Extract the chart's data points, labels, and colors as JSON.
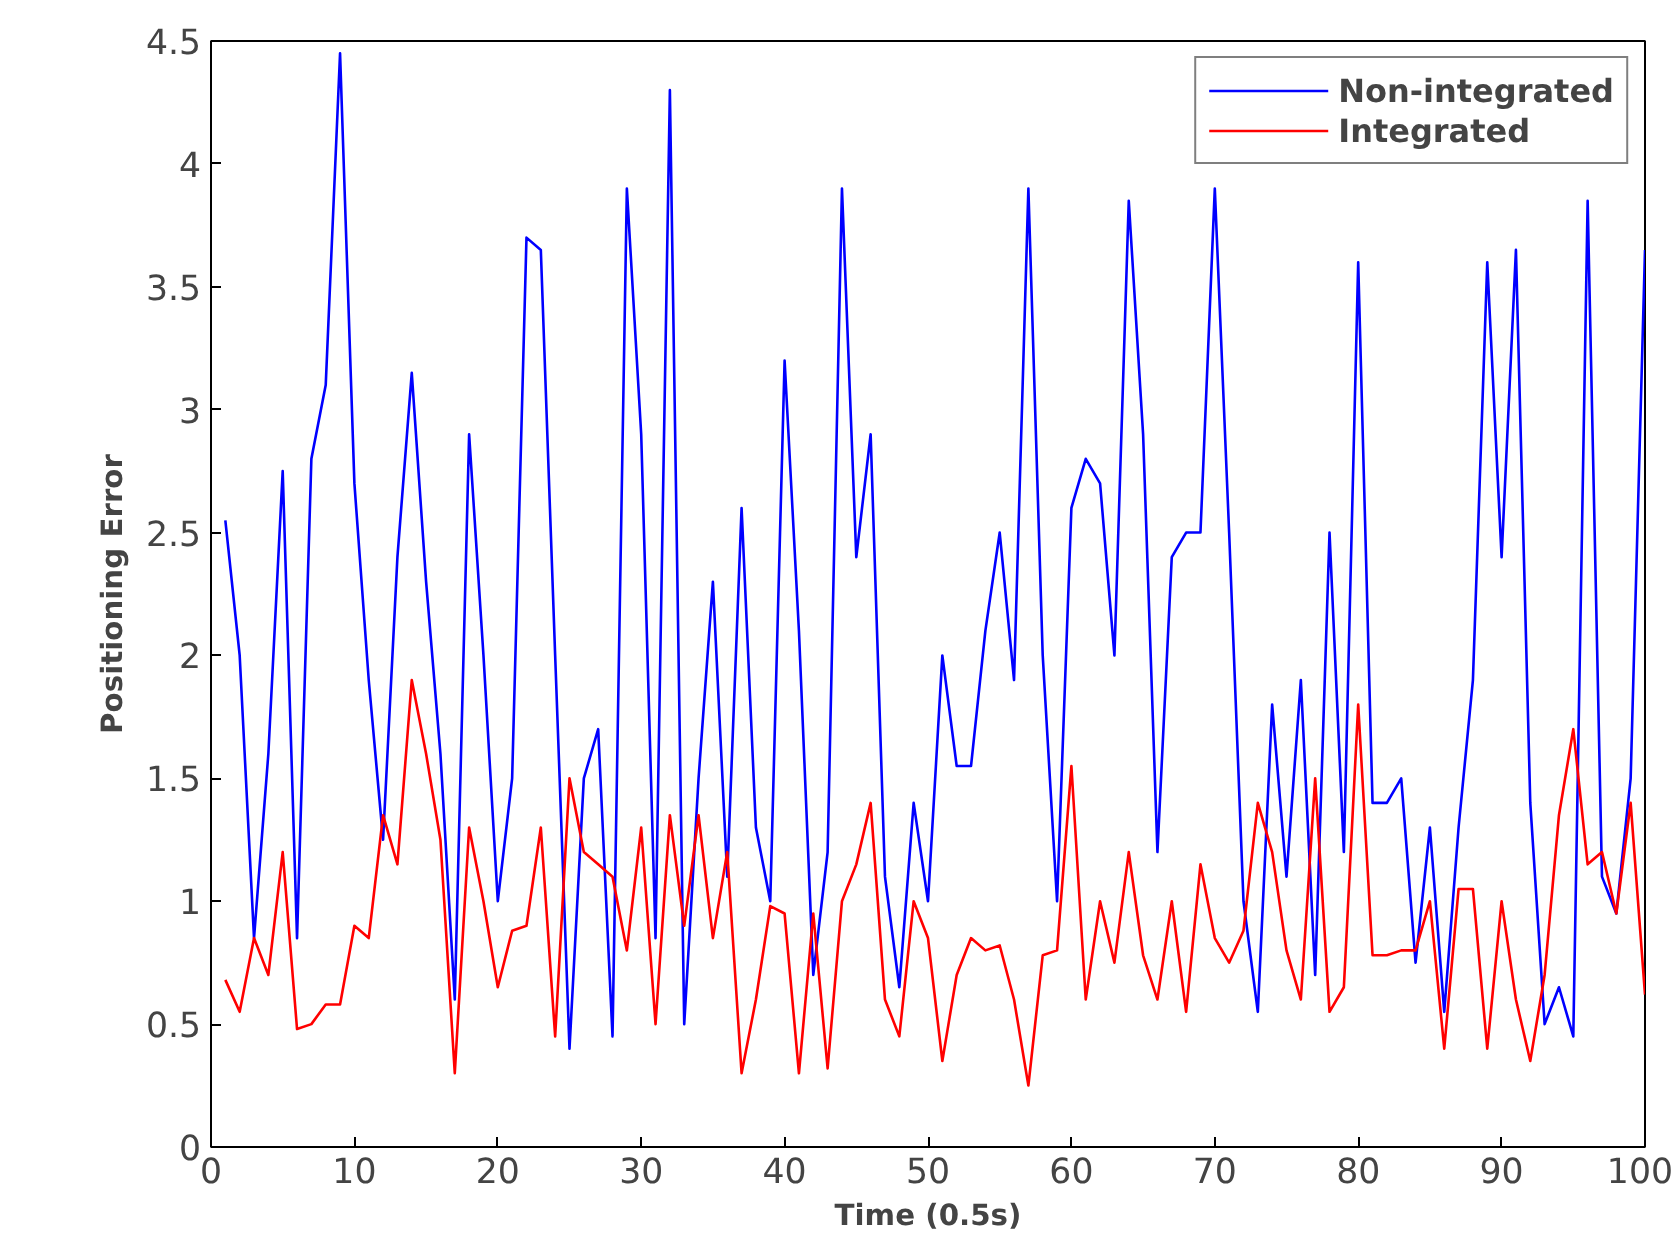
{
  "chart_data": {
    "type": "line",
    "xlabel": "Time (0.5s)",
    "ylabel": "Positioning Error",
    "x": [
      1,
      2,
      3,
      4,
      5,
      6,
      7,
      8,
      9,
      10,
      11,
      12,
      13,
      14,
      15,
      16,
      17,
      18,
      19,
      20,
      21,
      22,
      23,
      24,
      25,
      26,
      27,
      28,
      29,
      30,
      31,
      32,
      33,
      34,
      35,
      36,
      37,
      38,
      39,
      40,
      41,
      42,
      43,
      44,
      45,
      46,
      47,
      48,
      49,
      50,
      51,
      52,
      53,
      54,
      55,
      56,
      57,
      58,
      59,
      60,
      61,
      62,
      63,
      64,
      65,
      66,
      67,
      68,
      69,
      70,
      71,
      72,
      73,
      74,
      75,
      76,
      77,
      78,
      79,
      80,
      81,
      82,
      83,
      84,
      85,
      86,
      87,
      88,
      89,
      90,
      91,
      92,
      93,
      94,
      95,
      96,
      97,
      98,
      99,
      100
    ],
    "series": [
      {
        "name": "Non-integrated",
        "color": "#0000ff",
        "values": [
          2.55,
          2.0,
          0.85,
          1.6,
          2.75,
          0.85,
          2.8,
          3.1,
          4.45,
          2.7,
          1.9,
          1.25,
          2.4,
          3.15,
          2.3,
          1.6,
          0.6,
          2.9,
          2.0,
          1.0,
          1.5,
          3.7,
          3.65,
          2.0,
          0.4,
          1.5,
          1.7,
          0.45,
          3.9,
          2.9,
          0.85,
          4.3,
          0.5,
          1.5,
          2.3,
          1.1,
          2.6,
          1.3,
          1.0,
          3.2,
          2.1,
          0.7,
          1.2,
          3.9,
          2.4,
          2.9,
          1.1,
          0.65,
          1.4,
          1.0,
          2.0,
          1.55,
          1.55,
          2.1,
          2.5,
          1.9,
          3.9,
          2.0,
          1.0,
          2.6,
          2.8,
          2.7,
          2.0,
          3.85,
          2.9,
          1.2,
          2.4,
          2.5,
          2.5,
          3.9,
          2.5,
          1.0,
          0.55,
          1.8,
          1.1,
          1.9,
          0.7,
          2.5,
          1.2,
          3.6,
          1.4,
          1.4,
          1.5,
          0.75,
          1.3,
          0.55,
          1.3,
          1.9,
          3.6,
          2.4,
          3.65,
          1.4,
          0.5,
          0.65,
          0.45,
          3.85,
          1.1,
          0.95,
          1.5,
          3.65
        ]
      },
      {
        "name": "Integrated",
        "color": "#ff0000",
        "values": [
          0.68,
          0.55,
          0.85,
          0.7,
          1.2,
          0.48,
          0.5,
          0.58,
          0.58,
          0.9,
          0.85,
          1.35,
          1.15,
          1.9,
          1.6,
          1.25,
          0.3,
          1.3,
          1.0,
          0.65,
          0.88,
          0.9,
          1.3,
          0.45,
          1.5,
          1.2,
          1.15,
          1.1,
          0.8,
          1.3,
          0.5,
          1.35,
          0.9,
          1.35,
          0.85,
          1.2,
          0.3,
          0.6,
          0.98,
          0.95,
          0.3,
          0.95,
          0.32,
          1.0,
          1.15,
          1.4,
          0.6,
          0.45,
          1.0,
          0.85,
          0.35,
          0.7,
          0.85,
          0.8,
          0.82,
          0.6,
          0.25,
          0.78,
          0.8,
          1.55,
          0.6,
          1.0,
          0.75,
          1.2,
          0.78,
          0.6,
          1.0,
          0.55,
          1.15,
          0.85,
          0.75,
          0.88,
          1.4,
          1.2,
          0.8,
          0.6,
          1.5,
          0.55,
          0.65,
          1.8,
          0.78,
          0.78,
          0.8,
          0.8,
          1.0,
          0.4,
          1.05,
          1.05,
          0.4,
          1.0,
          0.6,
          0.35,
          0.7,
          1.35,
          1.7,
          1.15,
          1.2,
          0.95,
          1.4,
          0.62
        ]
      }
    ],
    "xlim": [
      0,
      100
    ],
    "xticks": [
      0,
      10,
      20,
      30,
      40,
      50,
      60,
      70,
      80,
      90,
      100
    ],
    "ylim": [
      0,
      4.5
    ],
    "yticks": [
      0,
      0.5,
      1,
      1.5,
      2,
      2.5,
      3,
      3.5,
      4,
      4.5
    ],
    "grid": false,
    "legend": "top right",
    "line_style": "solid",
    "marker": "none"
  }
}
